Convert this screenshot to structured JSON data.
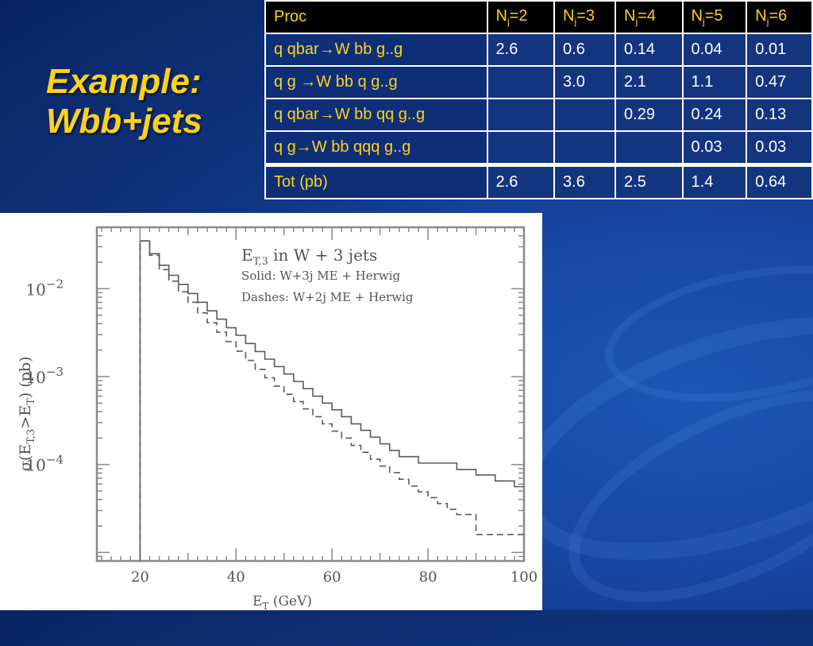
{
  "slide": {
    "title_line1": "Example:",
    "title_line2": "Wbb+jets"
  },
  "table": {
    "headers": [
      {
        "text": "Proc"
      },
      {
        "base": "N",
        "sub": "j",
        "suffix": "=2"
      },
      {
        "base": "N",
        "sub": "j",
        "suffix": "=3"
      },
      {
        "base": "N",
        "sub": "j",
        "suffix": "=4"
      },
      {
        "base": "N",
        "sub": "j",
        "suffix": "=5"
      },
      {
        "base": "N",
        "sub": "j",
        "suffix": "=6"
      }
    ],
    "rows": [
      {
        "process": "q qbar→W bb g..g",
        "values": [
          "2.6",
          "0.6",
          "0.14",
          "0.04",
          "0.01"
        ]
      },
      {
        "process": "q g →W bb q g..g",
        "values": [
          "",
          "3.0",
          "2.1",
          "1.1",
          "0.47"
        ]
      },
      {
        "process": "q qbar→W bb qq g..g",
        "values": [
          "",
          "",
          "0.29",
          "0.24",
          "0.13"
        ]
      },
      {
        "process": "q g→W bb qqq g..g",
        "values": [
          "",
          "",
          "",
          "0.03",
          "0.03"
        ]
      },
      {
        "process": "Tot (pb)",
        "values": [
          "2.6",
          "3.6",
          "2.5",
          "1.4",
          "0.64"
        ]
      }
    ]
  },
  "chart_data": {
    "type": "line",
    "step": true,
    "title": "E_T,3 in W + 3 jets",
    "annotations": [
      "Solid: W+3j ME + Herwig",
      "Dashes: W+2j ME + Herwig"
    ],
    "xlabel": "E_T (GeV)",
    "ylabel": "σ(E_T,3>E_T) (pb)",
    "xlim": [
      11,
      100
    ],
    "ylim": [
      8e-06,
      0.05
    ],
    "yscale": "log",
    "x_ticks": [
      "20",
      "40",
      "60",
      "80",
      "100"
    ],
    "y_ticks": [
      {
        "base": "10",
        "exp": "−2"
      },
      {
        "base": "10",
        "exp": "−3"
      },
      {
        "base": "10",
        "exp": "−4"
      }
    ],
    "series": [
      {
        "name": "Solid: W+3j ME + Herwig",
        "style": "solid",
        "x": [
          20,
          22,
          24,
          26,
          28,
          30,
          32,
          34,
          36,
          38,
          40,
          42,
          44,
          46,
          48,
          50,
          52,
          54,
          56,
          58,
          60,
          62,
          64,
          66,
          68,
          70,
          72,
          74,
          76,
          78,
          80,
          82,
          84,
          86,
          88,
          90,
          92,
          94,
          96,
          98,
          100
        ],
        "y": [
          0.035,
          0.025,
          0.0185,
          0.0142,
          0.0112,
          0.0088,
          0.007,
          0.0056,
          0.0045,
          0.0036,
          0.00295,
          0.00238,
          0.00193,
          0.00158,
          0.0013,
          0.00107,
          0.00088,
          0.00073,
          0.0006,
          0.0005,
          0.00042,
          0.00035,
          0.00029,
          0.000245,
          0.000205,
          0.000172,
          0.000145,
          0.000123,
          0.000123,
          0.000104,
          0.000104,
          0.000104,
          0.000104,
          8.8e-05,
          8.8e-05,
          7.6e-05,
          7.6e-05,
          6.5e-05,
          6.5e-05,
          5.6e-05,
          5.6e-05
        ]
      },
      {
        "name": "Dashes: W+2j ME + Herwig",
        "style": "dashed",
        "x": [
          20,
          22,
          24,
          26,
          28,
          30,
          32,
          34,
          36,
          38,
          40,
          42,
          44,
          46,
          48,
          50,
          52,
          54,
          56,
          58,
          60,
          62,
          64,
          66,
          68,
          70,
          72,
          74,
          76,
          78,
          80,
          82,
          84,
          86,
          88,
          90,
          92,
          94,
          96,
          98,
          100
        ],
        "y": [
          0.035,
          0.024,
          0.0165,
          0.0122,
          0.0092,
          0.007,
          0.0053,
          0.0041,
          0.0032,
          0.0025,
          0.00195,
          0.00153,
          0.00121,
          0.00097,
          0.00078,
          0.00063,
          0.00052,
          0.00043,
          0.00035,
          0.00029,
          0.00024,
          0.0002,
          0.000165,
          0.000138,
          0.000115,
          9.6e-05,
          8.1e-05,
          6.8e-05,
          5.7e-05,
          4.9e-05,
          4.2e-05,
          3.6e-05,
          3.1e-05,
          2.7e-05,
          2.7e-05,
          1.6e-05,
          1.6e-05,
          1.6e-05,
          1.6e-05,
          1.6e-05,
          1.6e-05
        ]
      }
    ]
  }
}
